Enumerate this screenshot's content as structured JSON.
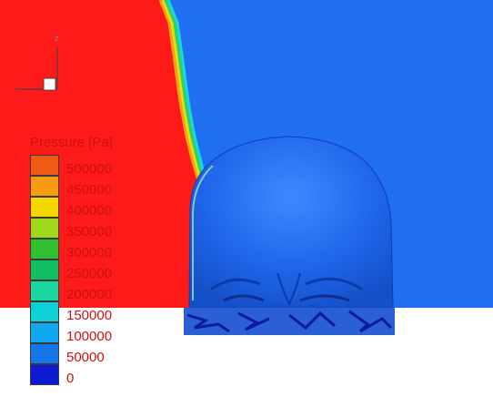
{
  "axis_triad": {
    "label": "z"
  },
  "legend": {
    "title": "Pressure [Pa]",
    "levels": [
      {
        "label": "500000",
        "color": "#f15a12"
      },
      {
        "label": "450000",
        "color": "#f79b12"
      },
      {
        "label": "400000",
        "color": "#f5d800"
      },
      {
        "label": "350000",
        "color": "#9fd81a"
      },
      {
        "label": "300000",
        "color": "#2fc02f"
      },
      {
        "label": "250000",
        "color": "#10c060"
      },
      {
        "label": "200000",
        "color": "#18d8a0"
      },
      {
        "label": "150000",
        "color": "#10d0d8"
      },
      {
        "label": "100000",
        "color": "#10a8f0"
      },
      {
        "label": "50000",
        "color": "#1476e8"
      },
      {
        "label": "0",
        "color": "#0c1ad0"
      }
    ]
  },
  "colors": {
    "high_pressure": "#ff1a1a",
    "ambient": "#1f6ff0",
    "head": "#1a5fe0",
    "head_highlight": "#3d8bff",
    "shell_band": "#2b5fd6"
  }
}
